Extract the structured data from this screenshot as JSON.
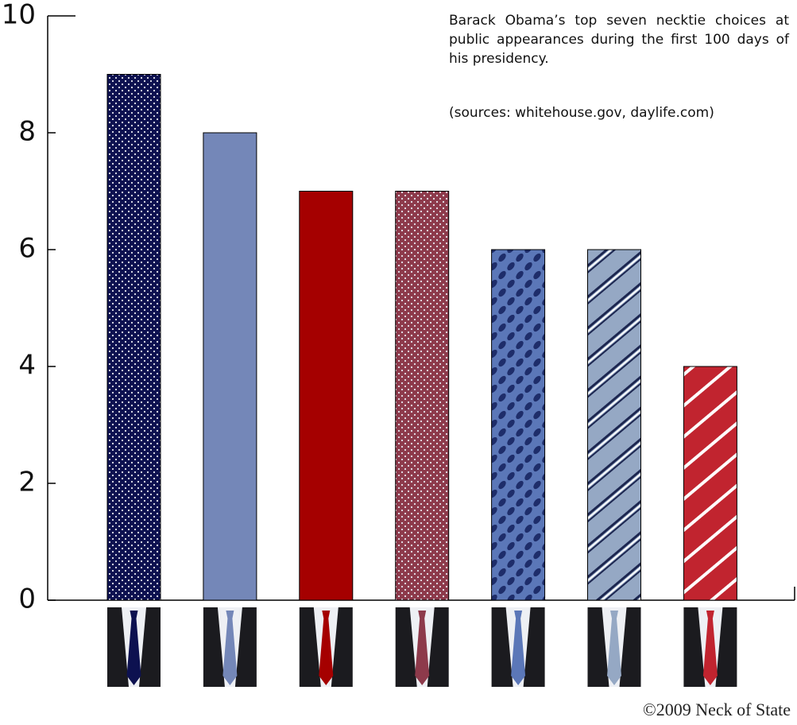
{
  "chart_data": {
    "type": "bar",
    "annotation": "Barack Obama’s top seven necktie choices at public appearances during the first 100 days of his presidency.",
    "source": "(sources: whitehouse.gov, daylife.com)",
    "credit": "©2009 Neck of State",
    "categories": [
      null,
      null,
      null,
      null,
      null,
      null,
      null
    ],
    "values": [
      9,
      8,
      7,
      7,
      6,
      6,
      4
    ],
    "colors": [
      "#0d1150",
      "#7487b8",
      "#a50000",
      "#8d3a4b",
      "#5b77b8",
      "#95a8c4",
      "#c1242f"
    ],
    "patterns": [
      "dots",
      "solid",
      "solid",
      "dots",
      "ovals",
      "stripes",
      "stripes"
    ],
    "ylim": [
      0,
      10
    ],
    "yticks": [
      0,
      2,
      4,
      6,
      8,
      10
    ]
  }
}
